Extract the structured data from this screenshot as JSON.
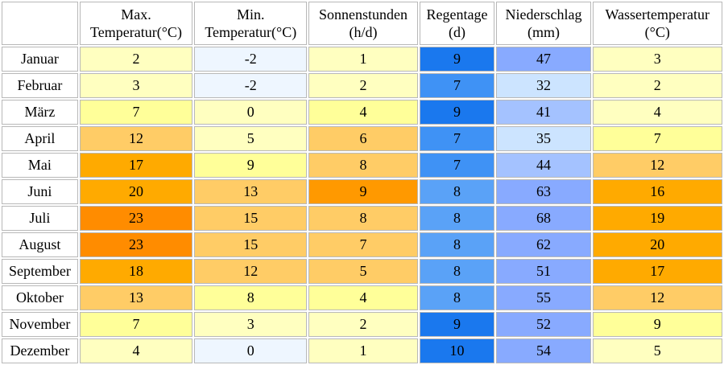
{
  "headers": [
    {
      "line1": "Max.",
      "line2": "Temperatur(°C)"
    },
    {
      "line1": "Min.",
      "line2": "Temperatur(°C)"
    },
    {
      "line1": "Sonnenstunden",
      "line2": "(h/d)"
    },
    {
      "line1": "Regentage",
      "line2": "(d)"
    },
    {
      "line1": "Niederschlag",
      "line2": "(mm)"
    },
    {
      "line1": "Wassertemperatur",
      "line2": "(°C)"
    }
  ],
  "rows": [
    {
      "month": "Januar",
      "values": [
        "2",
        "-2",
        "1",
        "9",
        "47",
        "3"
      ]
    },
    {
      "month": "Februar",
      "values": [
        "3",
        "-2",
        "2",
        "7",
        "32",
        "2"
      ]
    },
    {
      "month": "März",
      "values": [
        "7",
        "0",
        "4",
        "9",
        "41",
        "4"
      ]
    },
    {
      "month": "April",
      "values": [
        "12",
        "5",
        "6",
        "7",
        "35",
        "7"
      ]
    },
    {
      "month": "Mai",
      "values": [
        "17",
        "9",
        "8",
        "7",
        "44",
        "12"
      ]
    },
    {
      "month": "Juni",
      "values": [
        "20",
        "13",
        "9",
        "8",
        "63",
        "16"
      ]
    },
    {
      "month": "Juli",
      "values": [
        "23",
        "15",
        "8",
        "8",
        "68",
        "19"
      ]
    },
    {
      "month": "August",
      "values": [
        "23",
        "15",
        "7",
        "8",
        "62",
        "20"
      ]
    },
    {
      "month": "September",
      "values": [
        "18",
        "12",
        "5",
        "8",
        "51",
        "17"
      ]
    },
    {
      "month": "Oktober",
      "values": [
        "13",
        "8",
        "4",
        "8",
        "55",
        "12"
      ]
    },
    {
      "month": "November",
      "values": [
        "7",
        "3",
        "2",
        "9",
        "52",
        "9"
      ]
    },
    {
      "month": "Dezember",
      "values": [
        "4",
        "0",
        "1",
        "10",
        "54",
        "5"
      ]
    }
  ],
  "cell_colors": [
    [
      "#ffffc0",
      "#eef6ff",
      "#ffffc0",
      "#1a78ee",
      "#88aaff",
      "#ffffc0"
    ],
    [
      "#ffffc0",
      "#eef6ff",
      "#ffffc0",
      "#3f92f5",
      "#cce4ff",
      "#ffffc0"
    ],
    [
      "#ffff99",
      "#ffffc0",
      "#ffff99",
      "#1a78ee",
      "#a4c2ff",
      "#ffffc0"
    ],
    [
      "#ffcc66",
      "#ffffc0",
      "#ffcc66",
      "#3f92f5",
      "#cce4ff",
      "#ffff99"
    ],
    [
      "#ffaa00",
      "#ffff99",
      "#ffcc66",
      "#3f92f5",
      "#a4c2ff",
      "#ffcc66"
    ],
    [
      "#ffaa00",
      "#ffcc66",
      "#ff9900",
      "#5aa2f7",
      "#88aaff",
      "#ffaa00"
    ],
    [
      "#ff8c00",
      "#ffcc66",
      "#ffcc66",
      "#5aa2f7",
      "#88aaff",
      "#ffaa00"
    ],
    [
      "#ff8c00",
      "#ffcc66",
      "#ffcc66",
      "#5aa2f7",
      "#88aaff",
      "#ffaa00"
    ],
    [
      "#ffaa00",
      "#ffcc66",
      "#ffcc66",
      "#5aa2f7",
      "#88aaff",
      "#ffaa00"
    ],
    [
      "#ffcc66",
      "#ffff99",
      "#ffff99",
      "#5aa2f7",
      "#88aaff",
      "#ffcc66"
    ],
    [
      "#ffff99",
      "#ffffc0",
      "#ffffc0",
      "#1a78ee",
      "#88aaff",
      "#ffff99"
    ],
    [
      "#ffffc0",
      "#eef6ff",
      "#ffffc0",
      "#1a78ee",
      "#88aaff",
      "#ffffc0"
    ]
  ]
}
